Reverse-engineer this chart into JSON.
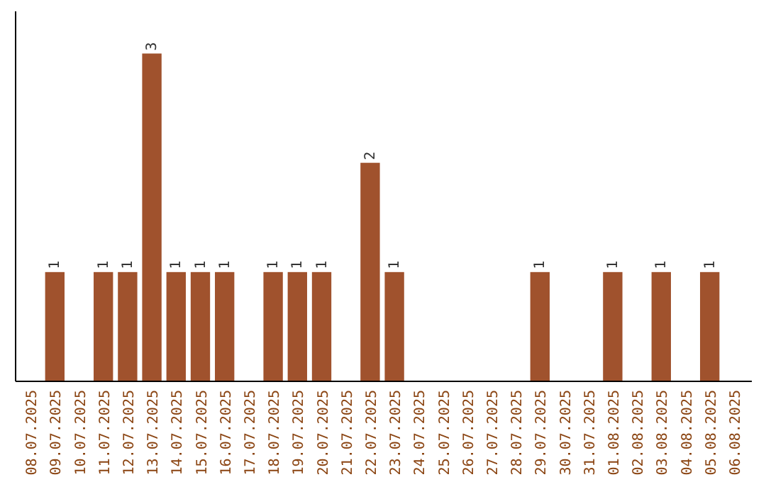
{
  "chart_data": {
    "type": "bar",
    "categories": [
      "08.07.2025",
      "09.07.2025",
      "10.07.2025",
      "11.07.2025",
      "12.07.2025",
      "13.07.2025",
      "14.07.2025",
      "15.07.2025",
      "16.07.2025",
      "17.07.2025",
      "18.07.2025",
      "19.07.2025",
      "20.07.2025",
      "21.07.2025",
      "22.07.2025",
      "23.07.2025",
      "24.07.2025",
      "25.07.2025",
      "26.07.2025",
      "27.07.2025",
      "28.07.2025",
      "29.07.2025",
      "30.07.2025",
      "31.07.2025",
      "01.08.2025",
      "02.08.2025",
      "03.08.2025",
      "04.08.2025",
      "05.08.2025",
      "06.08.2025"
    ],
    "values": [
      0,
      1,
      0,
      1,
      1,
      3,
      1,
      1,
      1,
      0,
      1,
      1,
      1,
      0,
      2,
      1,
      0,
      0,
      0,
      0,
      0,
      1,
      0,
      0,
      1,
      0,
      1,
      0,
      1,
      0
    ],
    "value_labels": [
      null,
      "1",
      null,
      "1",
      "1",
      "3",
      "1",
      "1",
      "1",
      null,
      "1",
      "1",
      "1",
      null,
      "2",
      "1",
      null,
      null,
      null,
      null,
      null,
      "1",
      null,
      null,
      "1",
      null,
      "1",
      null,
      "1",
      null
    ],
    "color": "#a0522d",
    "tick_labels": "x"
  }
}
